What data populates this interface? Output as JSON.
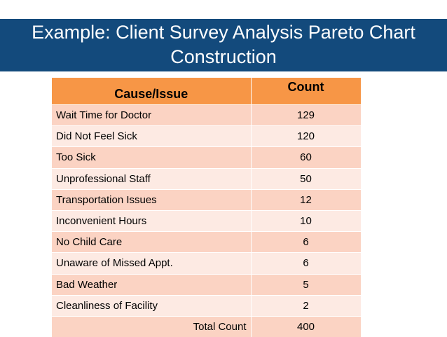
{
  "title": {
    "line1": "Example: Client Survey Analysis Pareto Chart",
    "line2": "Construction"
  },
  "table": {
    "headers": {
      "cause": "Cause/Issue",
      "count": "Count"
    },
    "rows": [
      {
        "cause": "Wait Time for Doctor",
        "count": "129"
      },
      {
        "cause": "Did Not Feel Sick",
        "count": "120"
      },
      {
        "cause": "Too Sick",
        "count": "60"
      },
      {
        "cause": "Unprofessional Staff",
        "count": "50"
      },
      {
        "cause": "Transportation Issues",
        "count": "12"
      },
      {
        "cause": "Inconvenient Hours",
        "count": "10"
      },
      {
        "cause": "No Child Care",
        "count": "6"
      },
      {
        "cause": "Unaware of Missed Appt.",
        "count": "6"
      },
      {
        "cause": "Bad Weather",
        "count": "5"
      },
      {
        "cause": "Cleanliness of Facility",
        "count": "2"
      }
    ],
    "total": {
      "label": "Total Count",
      "value": "400"
    }
  },
  "colors": {
    "title_bar": "#134a7c",
    "header_fill": "#f79646",
    "row_dark": "#fbd3c3",
    "row_light": "#fdeae3"
  }
}
